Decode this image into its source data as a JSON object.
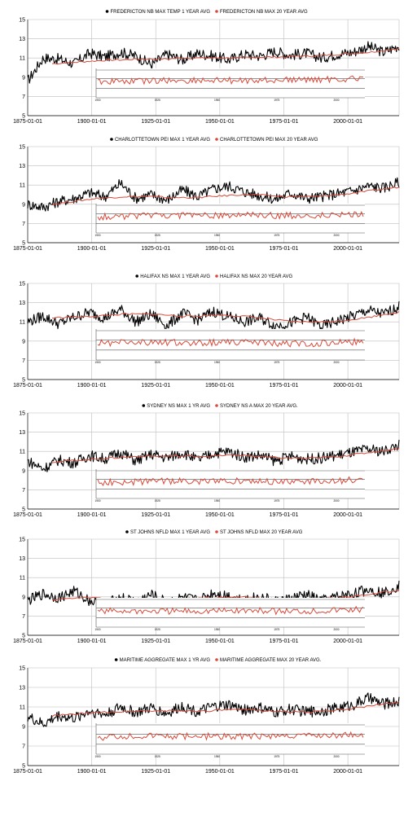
{
  "chart_data": [
    {
      "type": "line",
      "legend": [
        "FREDERICTON NB  MAX TEMP 1 YEAR AVG",
        "FREDERICTON NB MAX 20 YEAR AVG"
      ],
      "y_ticks": [
        "15",
        "13",
        "11",
        "9",
        "7",
        "5"
      ],
      "x_ticks": [
        "1875-01-01",
        "1900-01-01",
        "1925-01-01",
        "1950-01-01",
        "1975-01-01",
        "2000-01-01"
      ],
      "ylim": [
        5,
        15
      ],
      "xlim": [
        "1875-01-01",
        "2020-01-01"
      ],
      "series": [
        {
          "values_1yr": [
            8.6,
            11.0,
            10.9,
            10.4,
            11.5,
            11.1,
            11.6,
            11.2,
            10.3,
            11.4,
            10.8,
            11.5,
            11.2,
            10.8,
            11.4,
            11.2,
            11.7,
            11.3,
            11.5,
            11.0,
            11.4,
            11.6,
            12.2,
            11.6,
            12.3
          ]
        },
        {
          "values_20yr": [
            10.4,
            10.5,
            10.6,
            10.7,
            10.8,
            10.8,
            10.9,
            10.9,
            10.9,
            11.0,
            11.0,
            11.0,
            11.0,
            11.0,
            11.1,
            11.1,
            11.1,
            11.2,
            11.2,
            11.3,
            11.4,
            11.5,
            11.6,
            11.8,
            12.0
          ]
        }
      ],
      "inset_x_ticks": [
        "1900",
        "1925",
        "1950",
        "1975",
        "2000"
      ]
    },
    {
      "type": "line",
      "legend": [
        "CHARLOTTETOWN PEI MAX 1 YEAR AVG",
        "CHARLOTTETOWN PEI MAX 20 YEAR AVG"
      ],
      "y_ticks": [
        "15",
        "13",
        "11",
        "9",
        "7",
        "5"
      ],
      "x_ticks": [
        "1875-01-01",
        "1900-01-01",
        "1925-01-01",
        "1950-01-01",
        "1975-01-01",
        "2000-01-01"
      ],
      "ylim": [
        5,
        15
      ],
      "xlim": [
        "1875-01-01",
        "2020-01-01"
      ],
      "series": [
        {
          "values_1yr": [
            9.0,
            8.7,
            9.3,
            9.6,
            10.2,
            9.8,
            11.2,
            9.6,
            10.0,
            9.4,
            10.5,
            9.8,
            10.6,
            10.9,
            10.3,
            9.9,
            9.5,
            10.2,
            9.6,
            9.8,
            10.1,
            10.4,
            10.9,
            10.7,
            11.3
          ]
        },
        {
          "values_20yr": [
            9.0,
            9.2,
            9.4,
            9.6,
            9.7,
            9.8,
            9.8,
            9.8,
            9.7,
            9.7,
            9.7,
            9.8,
            9.9,
            10.0,
            10.0,
            9.9,
            9.8,
            9.8,
            9.8,
            9.9,
            10.0,
            10.2,
            10.4,
            10.6,
            10.8
          ]
        }
      ],
      "inset_x_ticks": [
        "1900",
        "1925",
        "1950",
        "1975",
        "2000"
      ]
    },
    {
      "type": "line",
      "legend": [
        "HALIFAX NS  MAX 1 YEAR AVG",
        "HALIFAX NS MAX 20 YEAR AVG"
      ],
      "y_ticks": [
        "15",
        "13",
        "11",
        "9",
        "7",
        "5"
      ],
      "x_ticks": [
        "1875-01-01",
        "1900-01-01",
        "1925-01-01",
        "1950-01-01",
        "1975-01-01",
        "2000-01-01"
      ],
      "ylim": [
        5,
        15
      ],
      "xlim": [
        "1875-01-01",
        "2020-01-01"
      ],
      "series": [
        {
          "values_1yr": [
            11.0,
            11.6,
            10.8,
            11.5,
            12.0,
            11.4,
            12.3,
            11.0,
            11.8,
            10.6,
            11.9,
            11.2,
            12.1,
            11.5,
            11.0,
            11.4,
            10.6,
            10.9,
            11.5,
            10.5,
            11.1,
            11.6,
            12.2,
            11.8,
            12.6
          ]
        },
        {
          "values_20yr": [
            11.4,
            11.5,
            11.5,
            11.6,
            11.7,
            11.8,
            11.8,
            11.8,
            11.7,
            11.6,
            11.6,
            11.7,
            11.7,
            11.6,
            11.5,
            11.3,
            11.1,
            11.0,
            11.0,
            11.0,
            11.1,
            11.3,
            11.5,
            11.8,
            12.0
          ]
        }
      ],
      "inset_x_ticks": [
        "1900",
        "1925",
        "1950",
        "1975",
        "2000"
      ]
    },
    {
      "type": "line",
      "legend": [
        "SYDNEY NS MAX 1 YR AVG",
        "SYDNEY NS A MAX 20 YEAR AVG."
      ],
      "y_ticks": [
        "15",
        "13",
        "11",
        "9",
        "7",
        "5"
      ],
      "x_ticks": [
        "1875-01-01",
        "1900-01-01",
        "1925-01-01",
        "1950-01-01",
        "1975-01-01",
        "2000-01-01"
      ],
      "ylim": [
        5,
        15
      ],
      "xlim": [
        "1875-01-01",
        "2020-01-01"
      ],
      "series": [
        {
          "values_1yr": [
            10.0,
            9.2,
            10.1,
            9.8,
            10.6,
            10.2,
            10.9,
            10.0,
            10.7,
            10.3,
            10.9,
            10.1,
            10.8,
            11.0,
            10.4,
            10.6,
            10.0,
            10.5,
            10.2,
            10.3,
            10.6,
            10.9,
            11.2,
            11.0,
            11.7
          ]
        },
        {
          "values_20yr": [
            9.9,
            10.0,
            10.1,
            10.2,
            10.3,
            10.4,
            10.5,
            10.5,
            10.5,
            10.5,
            10.5,
            10.5,
            10.6,
            10.6,
            10.5,
            10.4,
            10.3,
            10.3,
            10.3,
            10.4,
            10.5,
            10.7,
            10.9,
            11.1,
            11.3
          ]
        }
      ],
      "inset_x_ticks": [
        "1900",
        "1925",
        "1950",
        "1975",
        "2000"
      ]
    },
    {
      "type": "line",
      "legend": [
        "ST JOHNS NFLD MAX 1 YEAR AVG",
        "ST JOHNS NFLD MAX 20 YEAR AVG"
      ],
      "y_ticks": [
        "15",
        "13",
        "11",
        "9",
        "7",
        "5"
      ],
      "x_ticks": [
        "1875-01-01",
        "1900-01-01",
        "1925-01-01",
        "1950-01-01",
        "1975-01-01",
        "2000-01-01"
      ],
      "ylim": [
        5,
        15
      ],
      "xlim": [
        "1875-01-01",
        "2020-01-01"
      ],
      "series": [
        {
          "values_1yr": [
            8.6,
            9.3,
            8.9,
            9.6,
            8.6,
            8.2,
            8.9,
            8.5,
            9.2,
            8.4,
            8.9,
            8.6,
            9.4,
            9.1,
            8.7,
            9.0,
            8.5,
            8.8,
            9.2,
            8.6,
            9.0,
            9.3,
            9.8,
            9.4,
            10.2
          ]
        },
        {
          "values_20yr": [
            8.7,
            8.8,
            8.9,
            8.9,
            8.8,
            8.7,
            8.7,
            8.7,
            8.8,
            8.8,
            8.9,
            8.9,
            9.0,
            9.0,
            8.9,
            8.8,
            8.7,
            8.7,
            8.7,
            8.8,
            8.9,
            9.1,
            9.3,
            9.5,
            9.7
          ]
        }
      ],
      "inset_x_ticks": [
        "1900",
        "1925",
        "1950",
        "1975",
        "2000"
      ]
    },
    {
      "type": "line",
      "legend": [
        "MARITIME AGGREGATE MAX 1 YR AVG",
        "MARITIME AGGREGATE MAX 20 YEAR AVG."
      ],
      "y_ticks": [
        "15",
        "13",
        "11",
        "9",
        "7",
        "5"
      ],
      "x_ticks": [
        "1875-01-01",
        "1900-01-01",
        "1925-01-01",
        "1950-01-01",
        "1975-01-01",
        "2000-01-01"
      ],
      "ylim": [
        5,
        15
      ],
      "xlim": [
        "1875-01-01",
        "2020-01-01"
      ],
      "series": [
        {
          "values_1yr": [
            10.0,
            9.2,
            10.1,
            9.8,
            10.6,
            10.2,
            11.0,
            10.4,
            10.9,
            10.3,
            11.1,
            10.5,
            11.0,
            11.2,
            10.7,
            10.9,
            10.4,
            10.8,
            10.5,
            10.6,
            10.9,
            11.2,
            11.9,
            11.3,
            11.6
          ]
        },
        {
          "values_20yr": [
            10.1,
            10.2,
            10.3,
            10.4,
            10.5,
            10.5,
            10.6,
            10.6,
            10.6,
            10.6,
            10.6,
            10.6,
            10.7,
            10.7,
            10.7,
            10.6,
            10.5,
            10.5,
            10.5,
            10.6,
            10.7,
            10.9,
            11.1,
            11.3,
            11.5
          ]
        }
      ],
      "inset_x_ticks": [
        "1900",
        "1925",
        "1950",
        "1975",
        "2000"
      ]
    }
  ],
  "colors": {
    "series1": "#000000",
    "series2": "#d94a3a",
    "grid": "#bdbdbd"
  }
}
